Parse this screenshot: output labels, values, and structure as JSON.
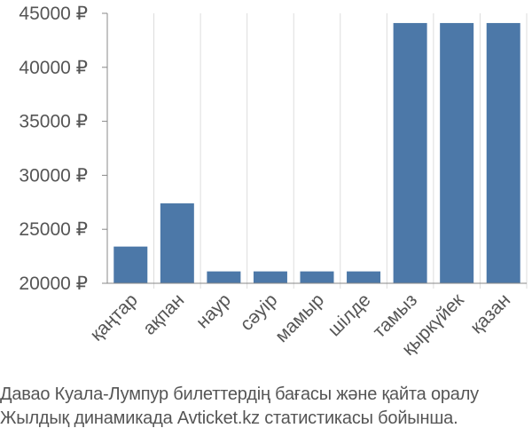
{
  "chart_data": {
    "type": "bar",
    "categories": [
      "қаңтар",
      "ақпан",
      "наур",
      "сәуір",
      "мамыр",
      "шілде",
      "тамыз",
      "қыркүйек",
      "қазан"
    ],
    "values": [
      23400,
      27400,
      21100,
      21100,
      21100,
      21100,
      44100,
      44100,
      44100
    ],
    "yticks": [
      "20000 ₽",
      "25000 ₽",
      "30000 ₽",
      "35000 ₽",
      "40000 ₽",
      "45000 ₽"
    ],
    "ylim": [
      20000,
      45000
    ],
    "bar_color": "#4c78a8",
    "grid": "vertical",
    "grid_color": "#dddddd",
    "axis_color": "#888888",
    "label_color": "#555555"
  },
  "caption": {
    "line1": "Давао Куала-Лумпур билеттердің бағасы және қайта оралу",
    "line2": "Жылдық динамикада Avticket.kz статистикасы бойынша."
  }
}
